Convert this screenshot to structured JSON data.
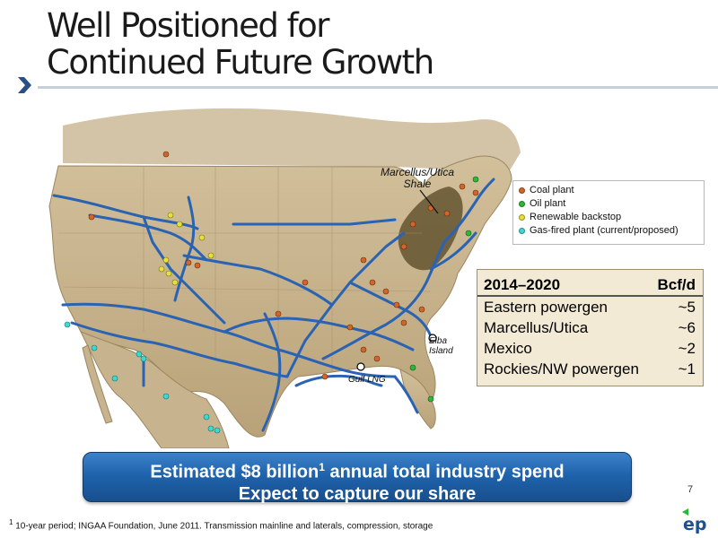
{
  "title": {
    "line1": "Well Positioned for",
    "line2": "Continued Future Growth"
  },
  "map": {
    "shale_label_line1": "Marcellus/Utica",
    "shale_label_line2": "Shale",
    "elba_label_line1": "Elba",
    "elba_label_line2": "Island",
    "gulf_label": "Gulf LNG"
  },
  "legend": {
    "items": [
      {
        "label": "Coal plant",
        "color": "#d4652a"
      },
      {
        "label": "Oil plant",
        "color": "#2db83a"
      },
      {
        "label": "Renewable backstop",
        "color": "#e6e03a"
      },
      {
        "label": "Gas-fired plant (current/proposed)",
        "color": "#3fd8d0"
      }
    ]
  },
  "demand_table": {
    "header_period": "2014–2020",
    "header_unit": "Bcf/d",
    "rows": [
      {
        "label": "Eastern powergen",
        "value": "~5"
      },
      {
        "label": "Marcellus/Utica",
        "value": "~6"
      },
      {
        "label": "Mexico",
        "value": "~2"
      },
      {
        "label": "Rockies/NW powergen",
        "value": "~1"
      }
    ]
  },
  "banner": {
    "line1_pre": "Estimated $8 billion",
    "line1_sup": "1",
    "line1_post": " annual total industry spend",
    "line2": "Expect to capture our share"
  },
  "page_number": "7",
  "footnote": {
    "marker": "1",
    "text": " 10-year period; INGAA Foundation, June 2011.  Transmission mainline and laterals, compression, storage"
  },
  "logo_text": "ep",
  "colors": {
    "pipeline": "#2a63b3",
    "land": "#c9b48c",
    "shale": "#5a4a26",
    "banner": "#1f63ad"
  }
}
